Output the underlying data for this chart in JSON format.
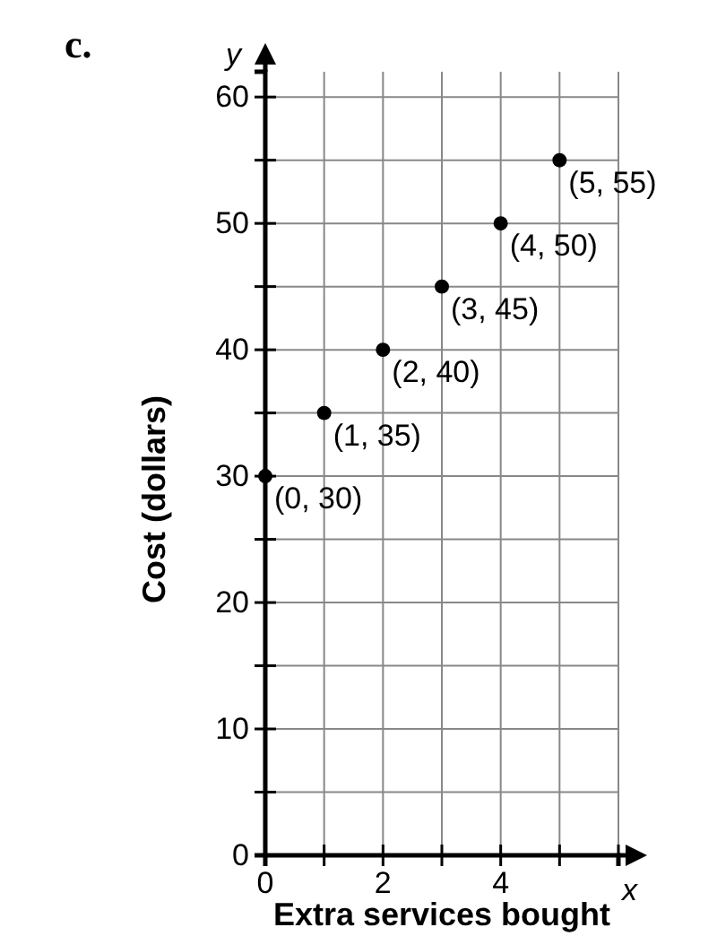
{
  "chart_data": {
    "type": "scatter",
    "xlabel": "Extra services bought",
    "ylabel": "Cost (dollars)",
    "annotations": [
      "c.",
      "x",
      "y"
    ],
    "x": [
      0,
      1,
      2,
      3,
      4,
      5
    ],
    "values": [
      30,
      35,
      40,
      45,
      50,
      55
    ],
    "value_labels": [
      "(0, 30)",
      "(1, 35)",
      "(2, 40)",
      "(3, 45)",
      "(4, 50)",
      "(5, 55)"
    ],
    "color": "#000000",
    "marker": "circle",
    "grid": true,
    "xlim": [
      0,
      6
    ],
    "xticks": [
      0,
      {
        "value": 1,
        "label": null
      },
      2,
      {
        "value": 3,
        "label": null
      },
      4,
      {
        "value": 5,
        "label": null
      },
      {
        "value": 6,
        "label": null
      }
    ],
    "ylim": [
      0,
      62
    ],
    "yticks": [
      0,
      {
        "value": 5,
        "label": null
      },
      10,
      {
        "value": 15,
        "label": null
      },
      20,
      {
        "value": 25,
        "label": null
      },
      30,
      {
        "value": 35,
        "label": null
      },
      40,
      {
        "value": 45,
        "label": null
      },
      50,
      {
        "value": 55,
        "label": null
      },
      60
    ]
  }
}
